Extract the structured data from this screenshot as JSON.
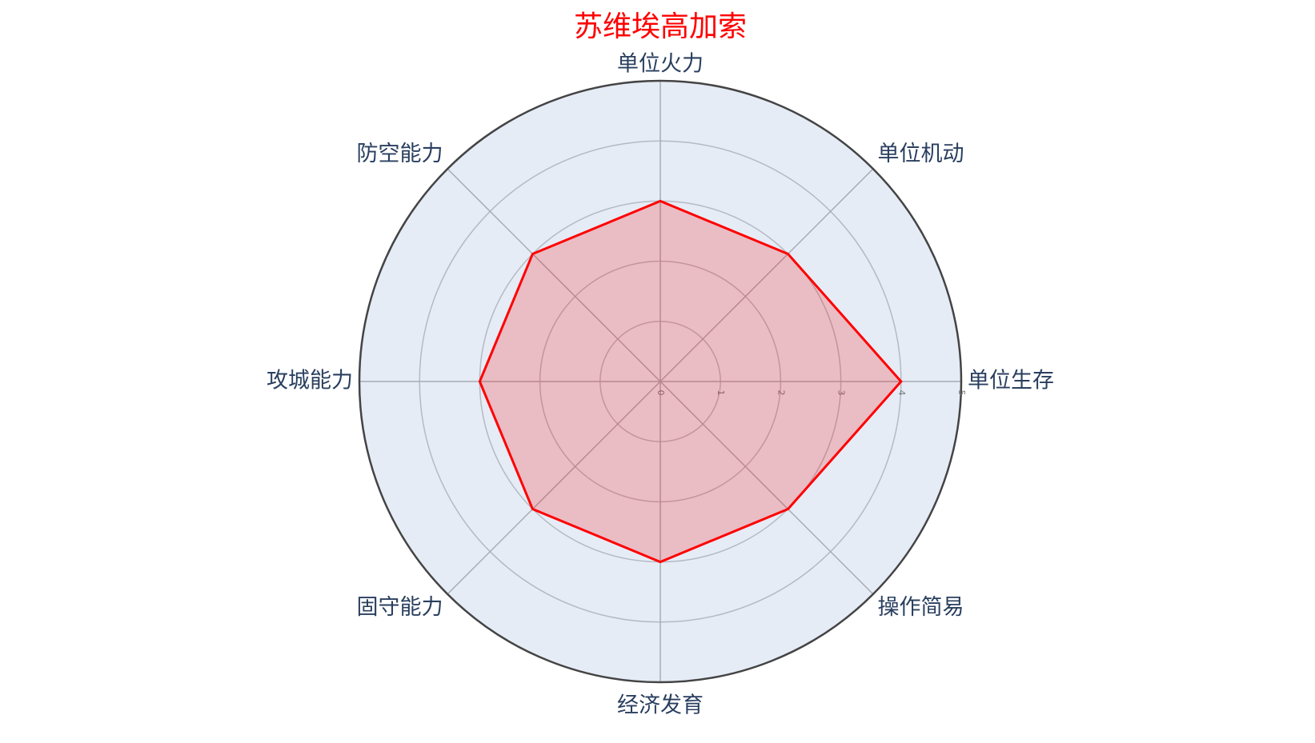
{
  "chart_data": {
    "type": "radar",
    "title": "苏维埃高加索",
    "categories": [
      "单位火力",
      "单位机动",
      "单位生存",
      "操作简易",
      "经济发育",
      "固守能力",
      "攻城能力",
      "防空能力"
    ],
    "values": [
      3,
      3,
      4,
      3,
      3,
      3,
      3,
      3
    ],
    "color": "#ff0000",
    "rlim": [
      0,
      5
    ],
    "rticks": [
      0,
      1,
      2,
      3,
      4,
      5
    ],
    "grid": true
  }
}
